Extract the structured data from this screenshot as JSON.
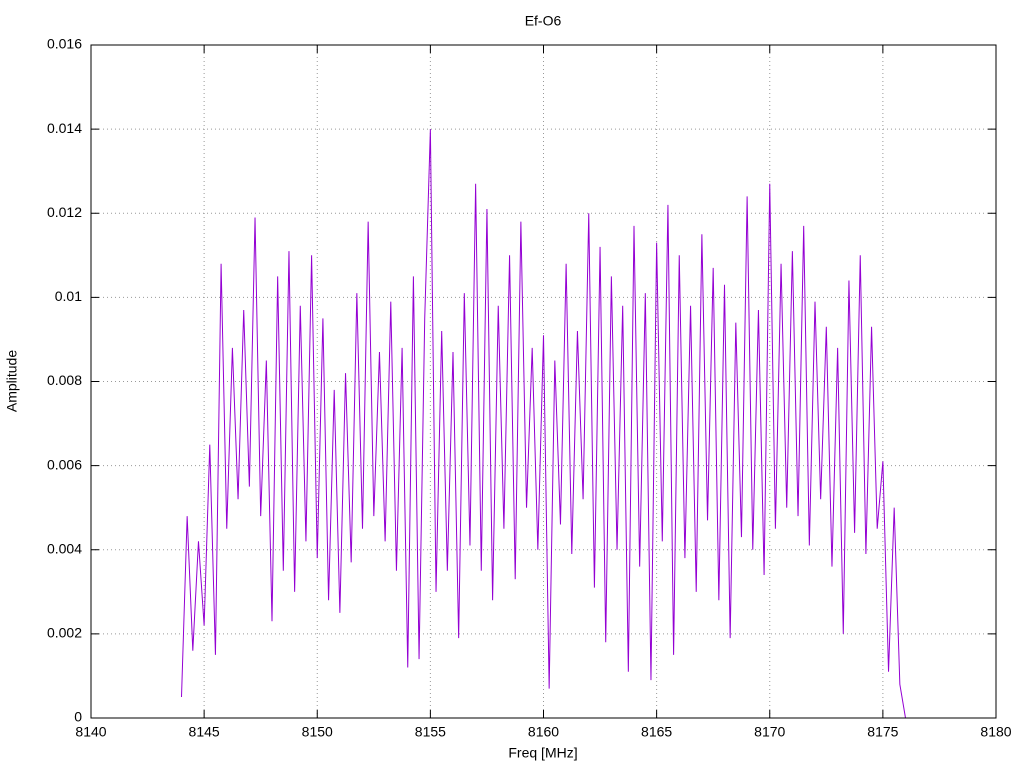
{
  "chart_data": {
    "type": "line",
    "title": "Ef-O6",
    "xlabel": "Freq [MHz]",
    "ylabel": "Amplitude",
    "xlim": [
      8140,
      8180
    ],
    "xticks": [
      8140,
      8145,
      8150,
      8155,
      8160,
      8165,
      8170,
      8175,
      8180
    ],
    "ylim": [
      0,
      0.016
    ],
    "yticks": [
      0,
      0.002,
      0.004,
      0.006,
      0.008,
      0.01,
      0.012,
      0.014,
      0.016
    ],
    "grid": true,
    "x": [
      8144,
      8144.25,
      8144.5,
      8144.75,
      8145,
      8145.25,
      8145.5,
      8145.75,
      8146,
      8146.25,
      8146.5,
      8146.75,
      8147,
      8147.25,
      8147.5,
      8147.75,
      8148,
      8148.25,
      8148.5,
      8148.75,
      8149,
      8149.25,
      8149.5,
      8149.75,
      8150,
      8150.25,
      8150.5,
      8150.75,
      8151,
      8151.25,
      8151.5,
      8151.75,
      8152,
      8152.25,
      8152.5,
      8152.75,
      8153,
      8153.25,
      8153.5,
      8153.75,
      8154,
      8154.25,
      8154.5,
      8154.75,
      8155,
      8155.25,
      8155.5,
      8155.75,
      8156,
      8156.25,
      8156.5,
      8156.75,
      8157,
      8157.25,
      8157.5,
      8157.75,
      8158,
      8158.25,
      8158.5,
      8158.75,
      8159,
      8159.25,
      8159.5,
      8159.75,
      8160,
      8160.25,
      8160.5,
      8160.75,
      8161,
      8161.25,
      8161.5,
      8161.75,
      8162,
      8162.25,
      8162.5,
      8162.75,
      8163,
      8163.25,
      8163.5,
      8163.75,
      8164,
      8164.25,
      8164.5,
      8164.75,
      8165,
      8165.25,
      8165.5,
      8165.75,
      8166,
      8166.25,
      8166.5,
      8166.75,
      8167,
      8167.25,
      8167.5,
      8167.75,
      8168,
      8168.25,
      8168.5,
      8168.75,
      8169,
      8169.25,
      8169.5,
      8169.75,
      8170,
      8170.25,
      8170.5,
      8170.75,
      8171,
      8171.25,
      8171.5,
      8171.75,
      8172,
      8172.25,
      8172.5,
      8172.75,
      8173,
      8173.25,
      8173.5,
      8173.75,
      8174,
      8174.25,
      8174.5,
      8174.75,
      8175,
      8175.25,
      8175.5,
      8175.75,
      8176
    ],
    "series": [
      {
        "color": "#9400d3",
        "values": [
          0.0005,
          0.0048,
          0.0016,
          0.0042,
          0.0022,
          0.0065,
          0.0015,
          0.0108,
          0.0045,
          0.0088,
          0.0052,
          0.0097,
          0.0055,
          0.0119,
          0.0048,
          0.0085,
          0.0023,
          0.0105,
          0.0035,
          0.0111,
          0.003,
          0.0098,
          0.0042,
          0.011,
          0.0038,
          0.0095,
          0.0028,
          0.0078,
          0.0025,
          0.0082,
          0.0037,
          0.0101,
          0.0045,
          0.0118,
          0.0048,
          0.0087,
          0.0042,
          0.0099,
          0.0035,
          0.0088,
          0.0012,
          0.0105,
          0.0014,
          0.0095,
          0.014,
          0.003,
          0.0092,
          0.0035,
          0.0087,
          0.0019,
          0.0101,
          0.0041,
          0.0127,
          0.0035,
          0.0121,
          0.0028,
          0.0098,
          0.0045,
          0.011,
          0.0033,
          0.0118,
          0.005,
          0.0088,
          0.004,
          0.0091,
          0.0007,
          0.0085,
          0.0046,
          0.0108,
          0.0039,
          0.0092,
          0.0052,
          0.012,
          0.0031,
          0.0112,
          0.0018,
          0.0105,
          0.004,
          0.0098,
          0.0011,
          0.0117,
          0.0036,
          0.0101,
          0.0009,
          0.0113,
          0.0042,
          0.0122,
          0.0015,
          0.011,
          0.0038,
          0.0098,
          0.003,
          0.0115,
          0.0047,
          0.0107,
          0.0028,
          0.0103,
          0.0019,
          0.0094,
          0.0043,
          0.0124,
          0.004,
          0.0097,
          0.0034,
          0.0127,
          0.0045,
          0.0108,
          0.005,
          0.0111,
          0.0048,
          0.0117,
          0.0041,
          0.0099,
          0.0052,
          0.0093,
          0.0036,
          0.0088,
          0.002,
          0.0104,
          0.0044,
          0.011,
          0.0039,
          0.0093,
          0.0045,
          0.0061,
          0.0011,
          0.005,
          0.0008,
          0
        ]
      }
    ]
  }
}
